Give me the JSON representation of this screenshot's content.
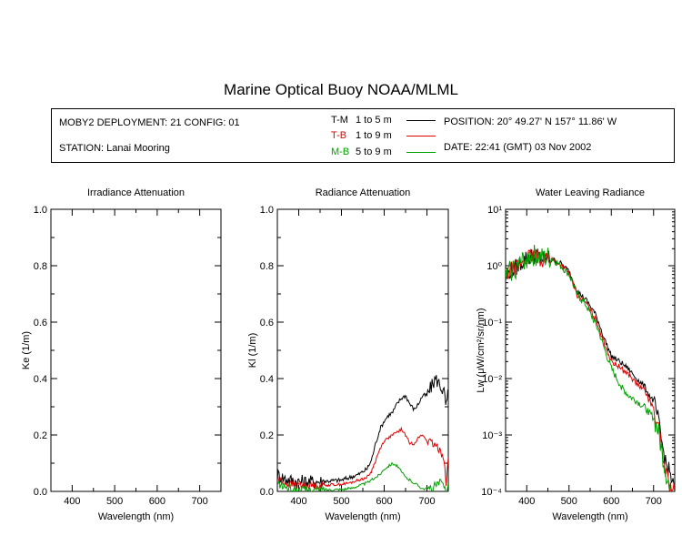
{
  "page_title": "Marine Optical Buoy NOAA/MLML",
  "header": {
    "deployment": "MOBY2 DEPLOYMENT: 21 CONFIG: 01",
    "station": "STATION: Lanai Mooring",
    "position": "POSITION: 20° 49.27' N   157° 11.86' W",
    "date": "DATE: 22:41 (GMT) 03 Nov 2002",
    "legend": [
      {
        "code": "T-M",
        "range": "1 to 5  m",
        "color": "#000000"
      },
      {
        "code": "T-B",
        "range": "1 to 9  m",
        "color": "#e00000"
      },
      {
        "code": "M-B",
        "range": "5 to 9  m",
        "color": "#00a000"
      }
    ]
  },
  "chart_data": [
    {
      "type": "line",
      "title": "Irradiance Attenuation",
      "xlabel": "Wavelength (nm)",
      "ylabel": "Ke  (1/m)",
      "xlim": [
        350,
        750
      ],
      "ylim": [
        0,
        1
      ],
      "xticks": [
        "400",
        "500",
        "600",
        "700"
      ],
      "yticks": [
        "0.0",
        "0.2",
        "0.4",
        "0.6",
        "0.8",
        "1.0"
      ],
      "series": []
    },
    {
      "type": "line",
      "title": "Radiance Attenuation",
      "xlabel": "Wavelength (nm)",
      "ylabel": "Kl  (1/m)",
      "xlim": [
        350,
        750
      ],
      "ylim": [
        0,
        1
      ],
      "xticks": [
        "400",
        "500",
        "600",
        "700"
      ],
      "yticks": [
        "0.0",
        "0.2",
        "0.4",
        "0.6",
        "0.8",
        "1.0"
      ],
      "series": [
        {
          "name": "T-M",
          "color": "#000000",
          "noise": 0.01,
          "x": [
            350,
            360,
            380,
            400,
            450,
            500,
            520,
            540,
            560,
            570,
            580,
            590,
            600,
            610,
            620,
            630,
            640,
            650,
            660,
            670,
            680,
            690,
            700,
            710,
            720,
            730,
            740,
            745,
            750
          ],
          "y": [
            0.06,
            0.05,
            0.04,
            0.035,
            0.035,
            0.04,
            0.05,
            0.06,
            0.08,
            0.11,
            0.17,
            0.22,
            0.25,
            0.27,
            0.28,
            0.31,
            0.33,
            0.34,
            0.31,
            0.29,
            0.31,
            0.34,
            0.34,
            0.37,
            0.4,
            0.38,
            0.35,
            0.3,
            0.35
          ]
        },
        {
          "name": "T-B",
          "color": "#e00000",
          "noise": 0.006,
          "x": [
            350,
            360,
            380,
            400,
            450,
            500,
            520,
            540,
            560,
            570,
            580,
            590,
            600,
            610,
            620,
            630,
            640,
            650,
            660,
            670,
            680,
            690,
            700,
            710,
            720,
            730,
            740,
            745,
            750
          ],
          "y": [
            0.045,
            0.035,
            0.025,
            0.022,
            0.022,
            0.025,
            0.03,
            0.04,
            0.05,
            0.07,
            0.11,
            0.15,
            0.18,
            0.19,
            0.2,
            0.21,
            0.22,
            0.2,
            0.17,
            0.17,
            0.19,
            0.2,
            0.18,
            0.17,
            0.16,
            0.15,
            0.12,
            0.02,
            0.12
          ]
        },
        {
          "name": "M-B",
          "color": "#00a000",
          "noise": 0.006,
          "x": [
            350,
            360,
            380,
            400,
            450,
            500,
            520,
            540,
            560,
            570,
            580,
            590,
            600,
            610,
            620,
            630,
            640,
            650,
            660,
            670,
            680,
            690,
            700,
            710,
            720,
            730,
            740,
            745,
            750
          ],
          "y": [
            0.03,
            0.02,
            0.01,
            0.005,
            0.005,
            0.008,
            0.01,
            0.02,
            0.03,
            0.04,
            0.05,
            0.06,
            0.08,
            0.09,
            0.1,
            0.09,
            0.07,
            0.05,
            0.04,
            0.03,
            0.02,
            0.01,
            0.01,
            0.01,
            0.02,
            0.03,
            0.02,
            0.0,
            0.03
          ]
        }
      ]
    },
    {
      "type": "line",
      "title": "Water Leaving Radiance",
      "xlabel": "Wavelength (nm)",
      "ylabel": "Lw  (μW/cm²/sr/nm)",
      "xlim": [
        350,
        750
      ],
      "ylim": [
        0.0001,
        10
      ],
      "yscale": "log",
      "xticks": [
        "400",
        "500",
        "600",
        "700"
      ],
      "yticks": [
        "10⁻⁴",
        "10⁻³",
        "10⁻²",
        "10⁻¹",
        "10⁰",
        "10¹"
      ],
      "series": [
        {
          "name": "T-M",
          "color": "#000000",
          "noise": 0.06,
          "x": [
            350,
            360,
            380,
            400,
            420,
            440,
            450,
            460,
            480,
            500,
            520,
            540,
            560,
            570,
            580,
            600,
            620,
            640,
            660,
            680,
            690,
            700,
            710,
            720,
            730,
            740,
            750
          ],
          "y": [
            0.6,
            0.8,
            1.0,
            1.4,
            1.5,
            1.3,
            1.4,
            1.3,
            1.1,
            0.8,
            0.35,
            0.25,
            0.15,
            0.1,
            0.06,
            0.025,
            0.02,
            0.015,
            0.01,
            0.007,
            0.005,
            0.004,
            0.002,
            0.0007,
            0.0003,
            0.0002,
            0.0001
          ]
        },
        {
          "name": "T-B",
          "color": "#e00000",
          "noise": 0.06,
          "x": [
            350,
            360,
            380,
            400,
            420,
            440,
            450,
            460,
            480,
            500,
            520,
            540,
            560,
            570,
            580,
            600,
            620,
            640,
            660,
            680,
            690,
            700,
            710,
            720,
            730,
            740,
            750
          ],
          "y": [
            0.6,
            0.8,
            1.0,
            1.4,
            1.5,
            1.3,
            1.4,
            1.3,
            1.05,
            0.75,
            0.3,
            0.22,
            0.12,
            0.085,
            0.05,
            0.02,
            0.016,
            0.012,
            0.008,
            0.006,
            0.004,
            0.003,
            0.0015,
            0.0005,
            0.0002,
            0.00012,
            0.0001
          ]
        },
        {
          "name": "M-B",
          "color": "#00a000",
          "noise": 0.08,
          "x": [
            350,
            360,
            380,
            400,
            420,
            440,
            450,
            460,
            480,
            500,
            520,
            540,
            560,
            570,
            580,
            600,
            620,
            640,
            660,
            680,
            690,
            700,
            710,
            720,
            730,
            740
          ],
          "y": [
            0.6,
            0.8,
            1.0,
            1.4,
            1.5,
            1.3,
            1.4,
            1.3,
            1.0,
            0.7,
            0.3,
            0.2,
            0.1,
            0.07,
            0.04,
            0.015,
            0.008,
            0.005,
            0.004,
            0.003,
            0.0025,
            0.002,
            0.0012,
            0.0005,
            0.0002,
            0.0001
          ]
        }
      ]
    }
  ]
}
